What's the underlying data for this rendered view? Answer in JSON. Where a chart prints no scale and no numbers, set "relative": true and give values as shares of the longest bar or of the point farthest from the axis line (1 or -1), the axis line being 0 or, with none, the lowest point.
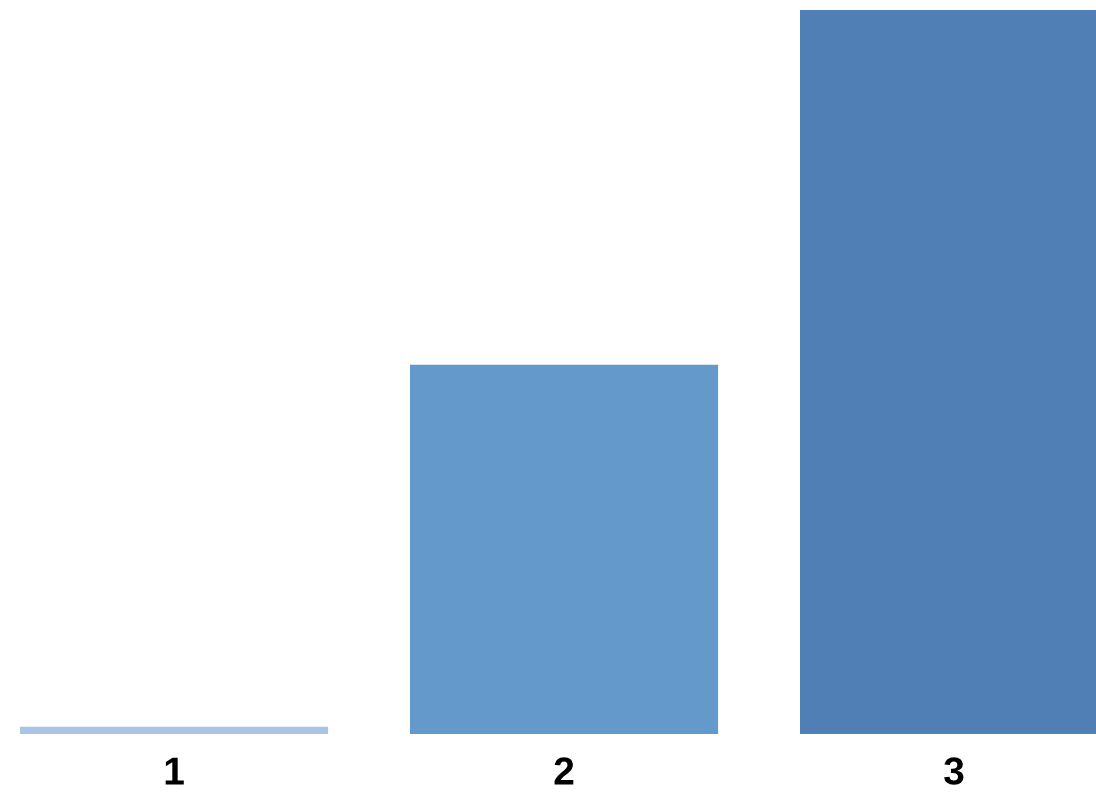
{
  "chart_data": {
    "type": "bar",
    "relative": true,
    "categories": [
      "1",
      "2",
      "3"
    ],
    "values": [
      0.01,
      0.51,
      1
    ],
    "colors": [
      "#a9c4e4",
      "#6399cb",
      "#4f7fb5"
    ],
    "grid": false,
    "legend": false
  }
}
